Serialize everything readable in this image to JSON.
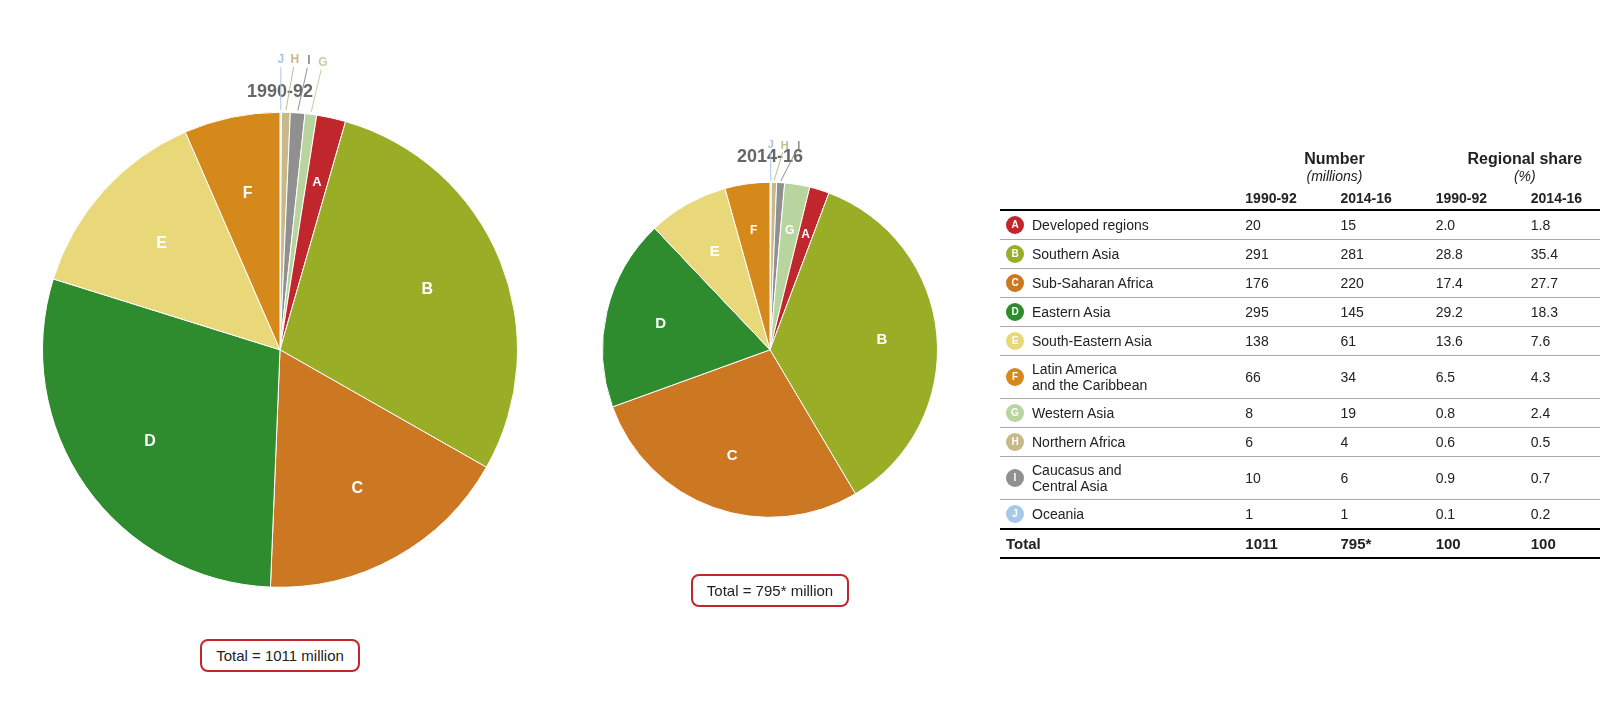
{
  "chart_data": [
    {
      "type": "pie",
      "title": "1990-92",
      "categories": [
        "J",
        "H",
        "I",
        "G",
        "A",
        "B",
        "C",
        "D",
        "E",
        "F"
      ],
      "values": [
        1,
        6,
        10,
        8,
        20,
        291,
        176,
        295,
        138,
        66
      ],
      "colors": [
        "#a8c8e8",
        "#c8b98a",
        "#909090",
        "#b8d5a0",
        "#c0272d",
        "#9aad27",
        "#cc7722",
        "#2e8b2e",
        "#e8d87a",
        "#d4891a"
      ],
      "annotations": [
        "Total = 1011 million"
      ]
    },
    {
      "type": "pie",
      "title": "2014-16",
      "categories": [
        "J",
        "H",
        "I",
        "G",
        "A",
        "B",
        "C",
        "D",
        "E",
        "F"
      ],
      "values": [
        1,
        4,
        6,
        19,
        15,
        281,
        220,
        145,
        61,
        34
      ],
      "colors": [
        "#a8c8e8",
        "#c8b98a",
        "#909090",
        "#b8d5a0",
        "#c0272d",
        "#9aad27",
        "#cc7722",
        "#2e8b2e",
        "#e8d87a",
        "#d4891a"
      ],
      "annotations": [
        "Total = 795* million"
      ]
    },
    {
      "type": "table",
      "headers": [
        {
          "text": "Number",
          "sub": "(millions)"
        },
        {
          "text": "Regional share",
          "sub": "(%)"
        }
      ],
      "columns": [
        "1990-92",
        "2014-16",
        "1990-92",
        "2014-16"
      ],
      "rows": [
        {
          "label": "A",
          "name": "Developed regions",
          "color": "#c0272d",
          "values": [
            20,
            15,
            2.0,
            1.8
          ],
          "value_labels": [
            "20",
            "15",
            "2.0",
            "1.8"
          ]
        },
        {
          "label": "B",
          "name": "Southern Asia",
          "color": "#9aad27",
          "values": [
            291,
            281,
            28.8,
            35.4
          ],
          "value_labels": [
            "291",
            "281",
            "28.8",
            "35.4"
          ]
        },
        {
          "label": "C",
          "name": "Sub-Saharan Africa",
          "color": "#cc7722",
          "values": [
            176,
            220,
            17.4,
            27.7
          ],
          "value_labels": [
            "176",
            "220",
            "17.4",
            "27.7"
          ]
        },
        {
          "label": "D",
          "name": "Eastern Asia",
          "color": "#2e8b2e",
          "values": [
            295,
            145,
            29.2,
            18.3
          ],
          "value_labels": [
            "295",
            "145",
            "29.2",
            "18.3"
          ]
        },
        {
          "label": "E",
          "name": "South-Eastern Asia",
          "color": "#e8d87a",
          "values": [
            138,
            61,
            13.6,
            7.6
          ],
          "value_labels": [
            "138",
            "61",
            "13.6",
            "7.6"
          ]
        },
        {
          "label": "F",
          "name": "Latin America\nand the Caribbean",
          "color": "#d4891a",
          "values": [
            66,
            34,
            6.5,
            4.3
          ],
          "value_labels": [
            "66",
            "34",
            "6.5",
            "4.3"
          ]
        },
        {
          "label": "G",
          "name": "Western Asia",
          "color": "#b8d5a0",
          "values": [
            8,
            19,
            0.8,
            2.4
          ],
          "value_labels": [
            "8",
            "19",
            "0.8",
            "2.4"
          ]
        },
        {
          "label": "H",
          "name": "Northern Africa",
          "color": "#c8b98a",
          "values": [
            6,
            4,
            0.6,
            0.5
          ],
          "value_labels": [
            "6",
            "4",
            "0.6",
            "0.5"
          ]
        },
        {
          "label": "I",
          "name": "Caucasus and\nCentral Asia",
          "color": "#909090",
          "values": [
            10,
            6,
            0.9,
            0.7
          ],
          "value_labels": [
            "10",
            "6",
            "0.9",
            "0.7"
          ]
        },
        {
          "label": "J",
          "name": "Oceania",
          "color": "#a8c8e8",
          "values": [
            1,
            1,
            0.1,
            0.2
          ],
          "value_labels": [
            "1",
            "1",
            "0.1",
            "0.2"
          ]
        }
      ],
      "total": {
        "name": "Total",
        "values": [
          1011,
          795,
          100,
          100
        ],
        "value_labels": [
          "1011",
          "795*",
          "100",
          "100"
        ]
      }
    }
  ]
}
